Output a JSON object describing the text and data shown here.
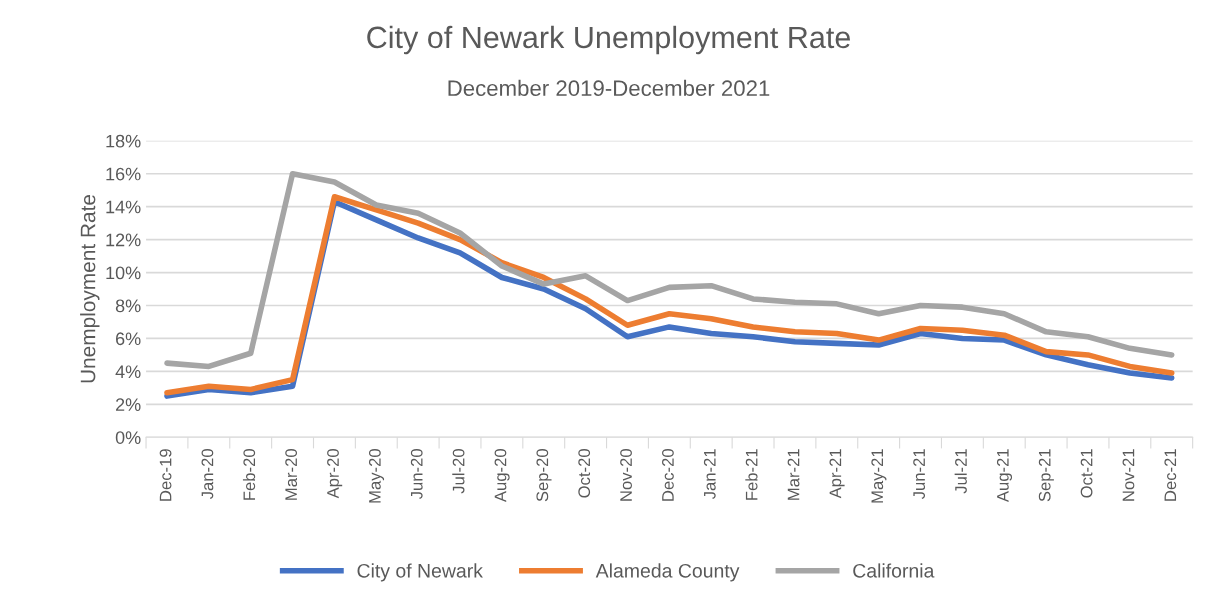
{
  "chart_data": {
    "type": "line",
    "title": "City of Newark Unemployment Rate",
    "subtitle": "December 2019-December 2021",
    "ylabel": "Unemployment Rate",
    "categories": [
      "Dec-19",
      "Jan-20",
      "Feb-20",
      "Mar-20",
      "Apr-20",
      "May-20",
      "Jun-20",
      "Jul-20",
      "Aug-20",
      "Sep-20",
      "Oct-20",
      "Nov-20",
      "Dec-20",
      "Jan-21",
      "Feb-21",
      "Mar-21",
      "Apr-21",
      "May-21",
      "Jun-21",
      "Jul-21",
      "Aug-21",
      "Sep-21",
      "Oct-21",
      "Nov-21",
      "Dec-21"
    ],
    "series": [
      {
        "name": "City of Newark",
        "color": "#4472c4",
        "values": [
          2.5,
          2.9,
          2.7,
          3.1,
          14.3,
          13.2,
          12.1,
          11.2,
          9.7,
          9.0,
          7.8,
          6.1,
          6.7,
          6.3,
          6.1,
          5.8,
          5.7,
          5.6,
          6.3,
          6.0,
          5.9,
          5.0,
          4.4,
          3.9,
          3.6
        ]
      },
      {
        "name": "Alameda County",
        "color": "#ed7d31",
        "values": [
          2.7,
          3.1,
          2.9,
          3.5,
          14.6,
          13.8,
          13.0,
          12.0,
          10.6,
          9.7,
          8.4,
          6.8,
          7.5,
          7.2,
          6.7,
          6.4,
          6.3,
          5.9,
          6.6,
          6.5,
          6.2,
          5.2,
          5.0,
          4.3,
          3.9
        ]
      },
      {
        "name": "California",
        "color": "#a5a5a5",
        "values": [
          4.5,
          4.3,
          5.1,
          16.0,
          15.5,
          14.1,
          13.6,
          12.4,
          10.4,
          9.3,
          9.8,
          8.3,
          9.1,
          9.2,
          8.4,
          8.2,
          8.1,
          7.5,
          8.0,
          7.9,
          7.5,
          6.4,
          6.1,
          5.4,
          5.0
        ]
      }
    ],
    "ylim": [
      0,
      18
    ],
    "yticks": [
      {
        "value": 0,
        "label": "0%"
      },
      {
        "value": 2,
        "label": "2%"
      },
      {
        "value": 4,
        "label": "4%"
      },
      {
        "value": 6,
        "label": "6%"
      },
      {
        "value": 8,
        "label": "8%"
      },
      {
        "value": 10,
        "label": "10%"
      },
      {
        "value": 12,
        "label": "12%"
      },
      {
        "value": 14,
        "label": "14%"
      },
      {
        "value": 16,
        "label": "16%"
      },
      {
        "value": 18,
        "label": "18%"
      }
    ],
    "grid": "y",
    "legend": "bottom",
    "marker": "none",
    "line_style": "solid"
  }
}
